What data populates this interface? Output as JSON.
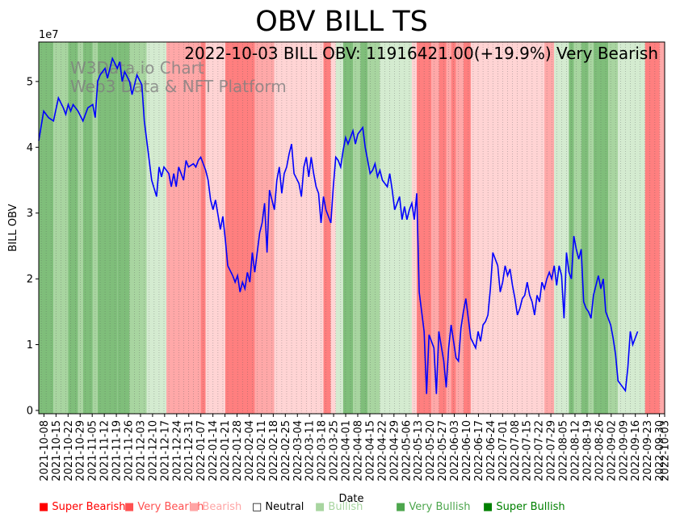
{
  "chart_data": {
    "type": "line",
    "title": "OBV BILL TS",
    "annotation": "2022-10-03 BILL OBV: 11916421.00(+19.9%) Very Bearish",
    "watermark": [
      "W3Data.io Chart",
      "Web3 Data & NFT Platform"
    ],
    "xlabel": "Date",
    "ylabel": "BILL OBV",
    "y_exponent_label": "1e7",
    "ylim": [
      -0.05,
      5.6
    ],
    "y_ticks": [
      0,
      1,
      2,
      3,
      4,
      5
    ],
    "x_start": "2021-10-05",
    "x_end": "2022-10-03",
    "x_tick_labels": [
      "2021-10-08",
      "2021-10-15",
      "2021-10-22",
      "2021-10-29",
      "2021-11-05",
      "2021-11-12",
      "2021-11-19",
      "2021-11-26",
      "2021-12-03",
      "2021-12-10",
      "2021-12-17",
      "2021-12-24",
      "2021-12-31",
      "2022-01-07",
      "2022-01-14",
      "2022-01-21",
      "2022-01-28",
      "2022-02-04",
      "2022-02-11",
      "2022-02-18",
      "2022-02-25",
      "2022-03-04",
      "2022-03-11",
      "2022-03-18",
      "2022-03-25",
      "2022-04-01",
      "2022-04-08",
      "2022-04-15",
      "2022-04-22",
      "2022-04-29",
      "2022-05-06",
      "2022-05-13",
      "2022-05-20",
      "2022-05-27",
      "2022-06-03",
      "2022-06-10",
      "2022-06-17",
      "2022-06-24",
      "2022-07-01",
      "2022-07-08",
      "2022-07-15",
      "2022-07-22",
      "2022-07-29",
      "2022-08-05",
      "2022-08-12",
      "2022-08-19",
      "2022-08-26",
      "2022-09-02",
      "2022-09-09",
      "2022-09-16",
      "2022-09-23",
      "2022-09-30",
      "2022-10-03"
    ],
    "series": [
      {
        "name": "BILL OBV",
        "color": "#0000ff",
        "unit": "1e7",
        "points": [
          [
            0,
            4.1
          ],
          [
            2,
            4.55
          ],
          [
            4,
            4.45
          ],
          [
            6,
            4.4
          ],
          [
            8,
            4.75
          ],
          [
            10,
            4.6
          ],
          [
            11,
            4.5
          ],
          [
            12,
            4.65
          ],
          [
            13,
            4.55
          ],
          [
            14,
            4.65
          ],
          [
            16,
            4.55
          ],
          [
            18,
            4.4
          ],
          [
            20,
            4.6
          ],
          [
            22,
            4.65
          ],
          [
            23,
            4.45
          ],
          [
            24,
            5.0
          ],
          [
            25,
            5.1
          ],
          [
            27,
            5.2
          ],
          [
            28,
            5.05
          ],
          [
            30,
            5.35
          ],
          [
            32,
            5.2
          ],
          [
            33,
            5.3
          ],
          [
            34,
            5.0
          ],
          [
            35,
            5.15
          ],
          [
            37,
            5.0
          ],
          [
            38,
            4.8
          ],
          [
            39,
            4.95
          ],
          [
            40,
            5.1
          ],
          [
            42,
            4.95
          ],
          [
            43,
            4.4
          ],
          [
            44,
            4.1
          ],
          [
            46,
            3.5
          ],
          [
            48,
            3.25
          ],
          [
            49,
            3.7
          ],
          [
            50,
            3.55
          ],
          [
            51,
            3.7
          ],
          [
            53,
            3.6
          ],
          [
            54,
            3.4
          ],
          [
            55,
            3.6
          ],
          [
            56,
            3.4
          ],
          [
            57,
            3.7
          ],
          [
            58,
            3.6
          ],
          [
            59,
            3.5
          ],
          [
            60,
            3.8
          ],
          [
            61,
            3.7
          ],
          [
            63,
            3.75
          ],
          [
            64,
            3.7
          ],
          [
            65,
            3.8
          ],
          [
            66,
            3.85
          ],
          [
            68,
            3.65
          ],
          [
            69,
            3.5
          ],
          [
            70,
            3.2
          ],
          [
            71,
            3.05
          ],
          [
            72,
            3.2
          ],
          [
            74,
            2.75
          ],
          [
            75,
            2.95
          ],
          [
            76,
            2.6
          ],
          [
            77,
            2.2
          ],
          [
            79,
            2.05
          ],
          [
            80,
            1.95
          ],
          [
            81,
            2.05
          ],
          [
            82,
            1.8
          ],
          [
            83,
            1.95
          ],
          [
            84,
            1.85
          ],
          [
            85,
            2.1
          ],
          [
            86,
            1.95
          ],
          [
            87,
            2.4
          ],
          [
            88,
            2.1
          ],
          [
            89,
            2.4
          ],
          [
            90,
            2.7
          ],
          [
            91,
            2.85
          ],
          [
            92,
            3.15
          ],
          [
            93,
            2.4
          ],
          [
            94,
            3.35
          ],
          [
            95,
            3.2
          ],
          [
            96,
            3.05
          ],
          [
            97,
            3.5
          ],
          [
            98,
            3.7
          ],
          [
            99,
            3.3
          ],
          [
            100,
            3.6
          ],
          [
            101,
            3.7
          ],
          [
            102,
            3.9
          ],
          [
            103,
            4.05
          ],
          [
            104,
            3.6
          ],
          [
            106,
            3.45
          ],
          [
            107,
            3.25
          ],
          [
            108,
            3.7
          ],
          [
            109,
            3.85
          ],
          [
            110,
            3.55
          ],
          [
            111,
            3.85
          ],
          [
            112,
            3.6
          ],
          [
            113,
            3.4
          ],
          [
            114,
            3.3
          ],
          [
            115,
            2.85
          ],
          [
            116,
            3.25
          ],
          [
            117,
            3.05
          ],
          [
            119,
            2.85
          ],
          [
            120,
            3.4
          ],
          [
            121,
            3.85
          ],
          [
            122,
            3.8
          ],
          [
            123,
            3.7
          ],
          [
            124,
            3.95
          ],
          [
            125,
            4.15
          ],
          [
            126,
            4.05
          ],
          [
            128,
            4.25
          ],
          [
            129,
            4.05
          ],
          [
            130,
            4.2
          ],
          [
            132,
            4.3
          ],
          [
            133,
            4.0
          ],
          [
            135,
            3.6
          ],
          [
            136,
            3.65
          ],
          [
            137,
            3.75
          ],
          [
            138,
            3.55
          ],
          [
            139,
            3.65
          ],
          [
            140,
            3.5
          ],
          [
            142,
            3.4
          ],
          [
            143,
            3.6
          ],
          [
            144,
            3.35
          ],
          [
            145,
            3.05
          ],
          [
            146,
            3.15
          ],
          [
            147,
            3.25
          ],
          [
            148,
            2.9
          ],
          [
            149,
            3.1
          ],
          [
            150,
            2.9
          ],
          [
            151,
            3.05
          ],
          [
            152,
            3.15
          ],
          [
            153,
            2.9
          ],
          [
            154,
            3.3
          ],
          [
            155,
            1.8
          ],
          [
            157,
            1.2
          ],
          [
            158,
            0.25
          ],
          [
            159,
            1.15
          ],
          [
            161,
            0.95
          ],
          [
            162,
            0.25
          ],
          [
            163,
            1.2
          ],
          [
            165,
            0.75
          ],
          [
            166,
            0.35
          ],
          [
            167,
            0.95
          ],
          [
            168,
            1.3
          ],
          [
            169,
            1.05
          ],
          [
            170,
            0.8
          ],
          [
            171,
            0.75
          ],
          [
            172,
            1.25
          ],
          [
            173,
            1.5
          ],
          [
            174,
            1.7
          ],
          [
            175,
            1.4
          ],
          [
            176,
            1.1
          ],
          [
            178,
            0.95
          ],
          [
            179,
            1.2
          ],
          [
            180,
            1.05
          ],
          [
            181,
            1.3
          ],
          [
            182,
            1.35
          ],
          [
            183,
            1.45
          ],
          [
            184,
            1.85
          ],
          [
            185,
            2.4
          ],
          [
            186,
            2.3
          ],
          [
            187,
            2.2
          ],
          [
            188,
            1.8
          ],
          [
            189,
            1.95
          ],
          [
            190,
            2.2
          ],
          [
            191,
            2.05
          ],
          [
            192,
            2.15
          ],
          [
            193,
            1.9
          ],
          [
            194,
            1.7
          ],
          [
            195,
            1.45
          ],
          [
            196,
            1.55
          ],
          [
            197,
            1.7
          ],
          [
            198,
            1.75
          ],
          [
            199,
            1.95
          ],
          [
            200,
            1.75
          ],
          [
            201,
            1.65
          ],
          [
            202,
            1.45
          ],
          [
            203,
            1.75
          ],
          [
            204,
            1.65
          ],
          [
            205,
            1.95
          ],
          [
            206,
            1.85
          ],
          [
            207,
            2.0
          ],
          [
            208,
            2.1
          ],
          [
            209,
            2.0
          ],
          [
            210,
            2.2
          ],
          [
            211,
            1.9
          ],
          [
            212,
            2.2
          ],
          [
            213,
            2.05
          ],
          [
            214,
            1.4
          ],
          [
            215,
            2.4
          ],
          [
            216,
            2.1
          ],
          [
            217,
            2.0
          ],
          [
            218,
            2.65
          ],
          [
            219,
            2.45
          ],
          [
            220,
            2.3
          ],
          [
            221,
            2.45
          ],
          [
            222,
            1.65
          ],
          [
            223,
            1.55
          ],
          [
            224,
            1.5
          ],
          [
            225,
            1.4
          ],
          [
            226,
            1.75
          ],
          [
            227,
            1.9
          ],
          [
            228,
            2.05
          ],
          [
            229,
            1.85
          ],
          [
            230,
            2.0
          ],
          [
            231,
            1.5
          ],
          [
            233,
            1.3
          ],
          [
            234,
            1.1
          ],
          [
            235,
            0.85
          ],
          [
            236,
            0.45
          ],
          [
            238,
            0.35
          ],
          [
            239,
            0.3
          ],
          [
            240,
            0.65
          ],
          [
            241,
            1.2
          ],
          [
            242,
            1.0
          ],
          [
            244,
            1.2
          ]
        ]
      }
    ],
    "band_colors": {
      "super_bearish": "#ff0000",
      "very_bearish": "#ff7f7f",
      "bearish": "#ffb3b3",
      "neutral": "#ffffff",
      "bullish": "#a8d5a0",
      "very_bullish": "#7fbe7a",
      "super_bullish": "#4da64d"
    },
    "bands": [
      {
        "start": 0,
        "end": 6,
        "state": "very_bullish"
      },
      {
        "start": 6,
        "end": 12,
        "state": "bullish"
      },
      {
        "start": 12,
        "end": 16,
        "state": "very_bullish"
      },
      {
        "start": 16,
        "end": 18,
        "state": "bullish"
      },
      {
        "start": 18,
        "end": 22,
        "state": "very_bullish"
      },
      {
        "start": 22,
        "end": 24,
        "state": "bullish"
      },
      {
        "start": 24,
        "end": 32,
        "state": "very_bullish"
      },
      {
        "start": 32,
        "end": 37,
        "state": "very_bullish"
      },
      {
        "start": 37,
        "end": 44,
        "state": "bullish"
      },
      {
        "start": 44,
        "end": 49,
        "state": "neutral_green"
      },
      {
        "start": 49,
        "end": 52,
        "state": "neutral_green"
      },
      {
        "start": 52,
        "end": 66,
        "state": "bearish"
      },
      {
        "start": 66,
        "end": 68,
        "state": "very_bearish"
      },
      {
        "start": 68,
        "end": 76,
        "state": "bearish_light"
      },
      {
        "start": 76,
        "end": 88,
        "state": "very_bearish"
      },
      {
        "start": 88,
        "end": 96,
        "state": "bearish"
      },
      {
        "start": 96,
        "end": 110,
        "state": "bearish_light"
      },
      {
        "start": 110,
        "end": 116,
        "state": "bearish_light"
      },
      {
        "start": 116,
        "end": 119,
        "state": "very_bearish"
      },
      {
        "start": 119,
        "end": 121,
        "state": "bearish_light"
      },
      {
        "start": 121,
        "end": 124,
        "state": "neutral_green"
      },
      {
        "start": 124,
        "end": 128,
        "state": "very_bullish"
      },
      {
        "start": 128,
        "end": 131,
        "state": "bullish"
      },
      {
        "start": 131,
        "end": 134,
        "state": "very_bullish"
      },
      {
        "start": 134,
        "end": 139,
        "state": "bullish"
      },
      {
        "start": 139,
        "end": 152,
        "state": "neutral_green"
      },
      {
        "start": 152,
        "end": 154,
        "state": "bearish_light"
      },
      {
        "start": 154,
        "end": 160,
        "state": "very_bearish"
      },
      {
        "start": 160,
        "end": 163,
        "state": "bearish"
      },
      {
        "start": 163,
        "end": 166,
        "state": "very_bearish"
      },
      {
        "start": 166,
        "end": 168,
        "state": "bearish"
      },
      {
        "start": 168,
        "end": 170,
        "state": "very_bearish"
      },
      {
        "start": 170,
        "end": 173,
        "state": "bearish"
      },
      {
        "start": 173,
        "end": 176,
        "state": "very_bearish"
      },
      {
        "start": 176,
        "end": 206,
        "state": "bearish_light"
      },
      {
        "start": 206,
        "end": 210,
        "state": "bearish"
      },
      {
        "start": 210,
        "end": 216,
        "state": "neutral_green"
      },
      {
        "start": 216,
        "end": 218,
        "state": "very_bullish"
      },
      {
        "start": 218,
        "end": 221,
        "state": "bullish"
      },
      {
        "start": 221,
        "end": 224,
        "state": "very_bullish"
      },
      {
        "start": 224,
        "end": 226,
        "state": "bullish"
      },
      {
        "start": 226,
        "end": 232,
        "state": "very_bullish"
      },
      {
        "start": 232,
        "end": 236,
        "state": "bullish"
      },
      {
        "start": 236,
        "end": 247,
        "state": "neutral_green"
      },
      {
        "start": 247,
        "end": 253,
        "state": "very_bearish"
      },
      {
        "start": 253,
        "end": 255,
        "state": "bearish"
      }
    ]
  },
  "legend": [
    {
      "label": "■ Super Bearish",
      "color": "#ff0000"
    },
    {
      "label": "■ Very Bearish",
      "color": "#ff5050"
    },
    {
      "label": "■ Bearish",
      "color": "#ffa5a5"
    },
    {
      "label": "□ Neutral",
      "color": "#000000"
    },
    {
      "label": "■ Bullish",
      "color": "#a8d5a0"
    },
    {
      "label": "■ Very Bullish",
      "color": "#4da64d"
    },
    {
      "label": "■ Super Bullish",
      "color": "#008000"
    }
  ]
}
